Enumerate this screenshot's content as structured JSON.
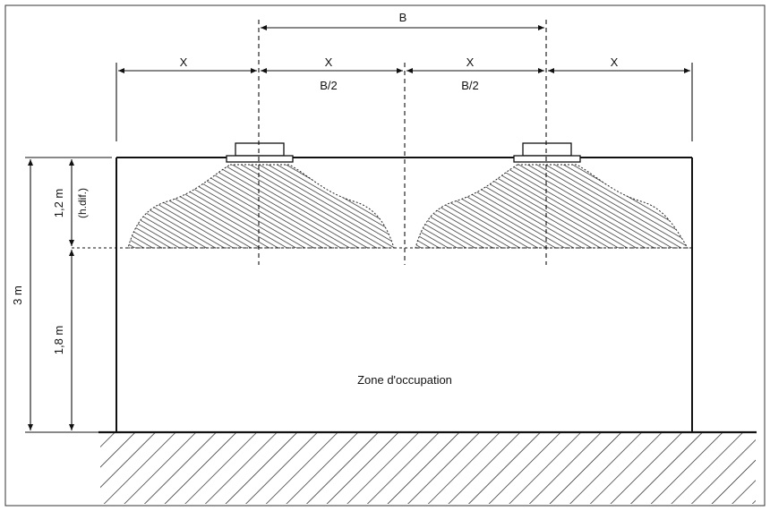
{
  "dimensions": {
    "b_label": "B",
    "x_label": "X",
    "half_b_label": "B/2",
    "total_height": "3 m",
    "diffusion_height": "1,2 m",
    "diffusion_note": "(h.dif.)",
    "occupied_height": "1,8 m"
  },
  "zone_label": "Zone d'occupation",
  "colors": {
    "line": "#111111",
    "hatch": "#222222",
    "background": "#ffffff"
  }
}
